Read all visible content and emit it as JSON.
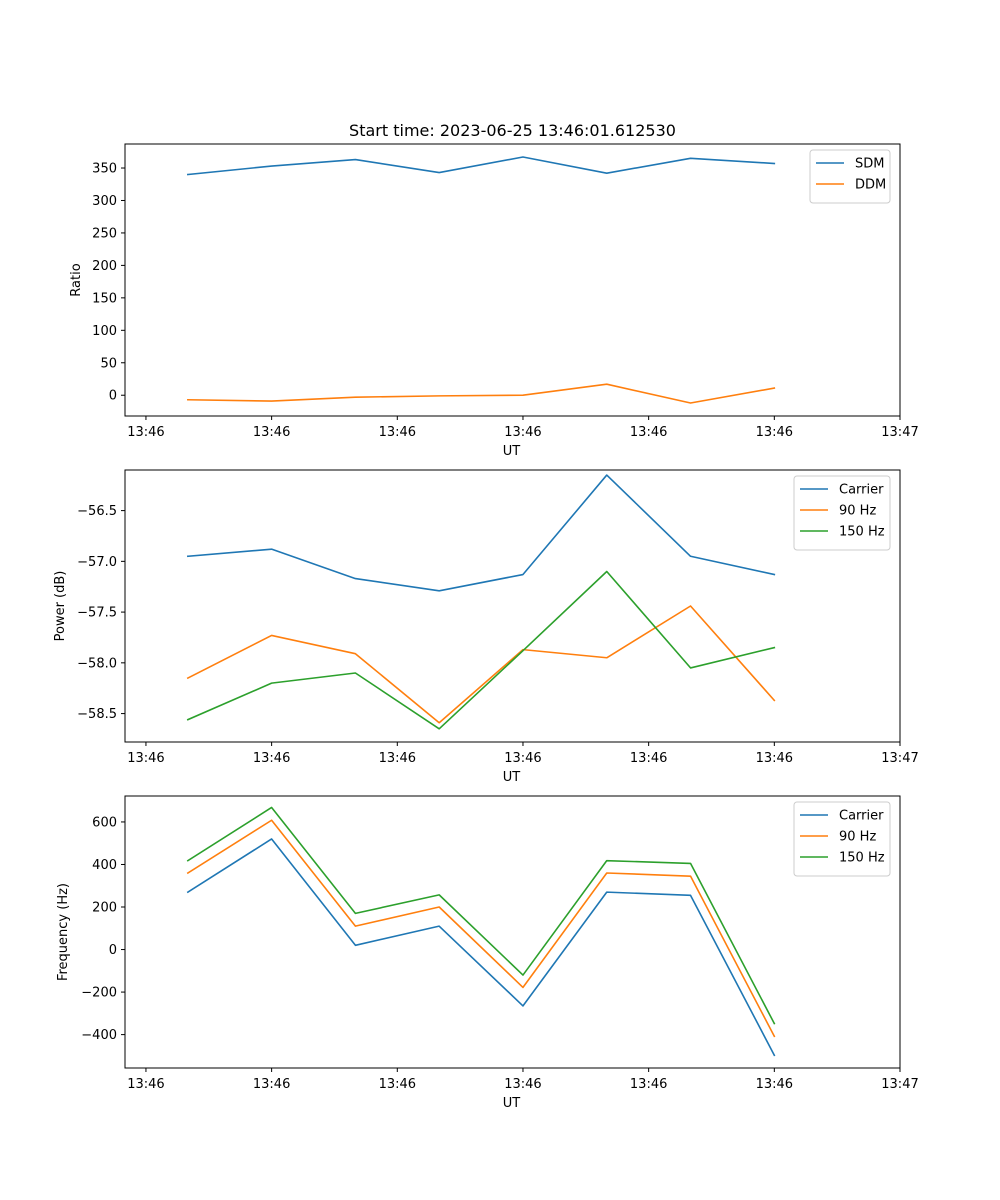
{
  "figure": {
    "title": "Start time: 2023-06-25 13:46:01.612530"
  },
  "chart_data": [
    {
      "type": "line",
      "title": "Start time: 2023-06-25 13:46:01.612530",
      "xlabel": "UT",
      "ylabel": "Ratio",
      "x_tick_labels": [
        "13:46",
        "13:46",
        "13:46",
        "13:46",
        "13:46",
        "13:46",
        "13:46"
      ],
      "x_last_tick_label": "13:47",
      "xlim": [
        -0.25,
        9.0
      ],
      "x": [
        0.5,
        1.5,
        2.5,
        3.5,
        4.5,
        5.5,
        6.5,
        7.5
      ],
      "ylim": [
        -32,
        387
      ],
      "y_ticks": [
        0,
        50,
        100,
        150,
        200,
        250,
        300,
        350
      ],
      "y_tick_labels": [
        "0",
        "50",
        "100",
        "150",
        "200",
        "250",
        "300",
        "350"
      ],
      "legend": "top-right",
      "series": [
        {
          "name": "SDM",
          "color": "#1f77b4",
          "values": [
            340,
            353,
            363,
            343,
            367,
            342,
            365,
            357
          ]
        },
        {
          "name": "DDM",
          "color": "#ff7f0e",
          "values": [
            -7,
            -9,
            -3,
            -1,
            0,
            17,
            -12,
            11
          ]
        }
      ]
    },
    {
      "type": "line",
      "xlabel": "UT",
      "ylabel": "Power (dB)",
      "x_tick_labels": [
        "13:46",
        "13:46",
        "13:46",
        "13:46",
        "13:46",
        "13:46",
        "13:46"
      ],
      "x_last_tick_label": "13:47",
      "xlim": [
        -0.25,
        9.0
      ],
      "x": [
        0.5,
        1.5,
        2.5,
        3.5,
        4.5,
        5.5,
        6.5,
        7.5
      ],
      "ylim": [
        -58.78,
        -56.1
      ],
      "y_ticks": [
        -58.5,
        -58.0,
        -57.5,
        -57.0,
        -56.5
      ],
      "y_tick_labels": [
        "−58.5",
        "−58.0",
        "−57.5",
        "−57.0",
        "−56.5"
      ],
      "legend": "top-right",
      "series": [
        {
          "name": "Carrier",
          "color": "#1f77b4",
          "values": [
            -56.95,
            -56.88,
            -57.17,
            -57.29,
            -57.13,
            -56.15,
            -56.95,
            -57.13
          ]
        },
        {
          "name": "90 Hz",
          "color": "#ff7f0e",
          "values": [
            -58.15,
            -57.73,
            -57.91,
            -58.59,
            -57.87,
            -57.95,
            -57.44,
            -58.37
          ]
        },
        {
          "name": "150 Hz",
          "color": "#2ca02c",
          "values": [
            -58.56,
            -58.2,
            -58.1,
            -58.65,
            -57.88,
            -57.1,
            -58.05,
            -57.85
          ]
        }
      ]
    },
    {
      "type": "line",
      "xlabel": "UT",
      "ylabel": "Frequency (Hz)",
      "x_tick_labels": [
        "13:46",
        "13:46",
        "13:46",
        "13:46",
        "13:46",
        "13:46",
        "13:46"
      ],
      "x_last_tick_label": "13:47",
      "xlim": [
        -0.25,
        9.0
      ],
      "x": [
        0.5,
        1.5,
        2.5,
        3.5,
        4.5,
        5.5,
        6.5,
        7.5
      ],
      "ylim": [
        -557,
        722
      ],
      "y_ticks": [
        -400,
        -200,
        0,
        200,
        400,
        600
      ],
      "y_tick_labels": [
        "−400",
        "−200",
        "0",
        "200",
        "400",
        "600"
      ],
      "legend": "top-right",
      "series": [
        {
          "name": "Carrier",
          "color": "#1f77b4",
          "values": [
            270,
            520,
            20,
            110,
            -265,
            270,
            255,
            -497
          ]
        },
        {
          "name": "90 Hz",
          "color": "#ff7f0e",
          "values": [
            360,
            608,
            110,
            200,
            -178,
            360,
            345,
            -408
          ]
        },
        {
          "name": "150 Hz",
          "color": "#2ca02c",
          "values": [
            418,
            668,
            170,
            257,
            -120,
            418,
            405,
            -348
          ]
        }
      ]
    }
  ]
}
